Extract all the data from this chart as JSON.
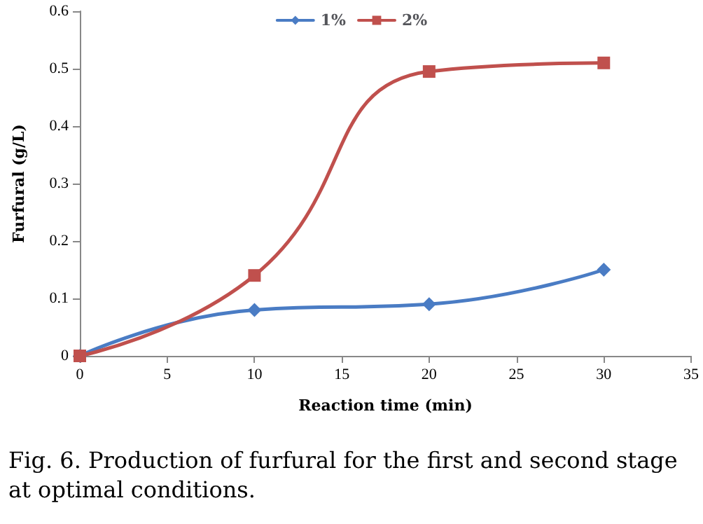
{
  "chart_data": {
    "type": "line",
    "xlabel": "Reaction time (min)",
    "ylabel": "Furfural (g/L)",
    "x": [
      0,
      10,
      20,
      30
    ],
    "series": [
      {
        "name": "1%",
        "color": "#4a7cc4",
        "marker": "diamond",
        "values": [
          0,
          0.08,
          0.09,
          0.15
        ]
      },
      {
        "name": "2%",
        "color": "#c0504d",
        "marker": "square",
        "values": [
          0,
          0.14,
          0.495,
          0.51
        ]
      }
    ],
    "xlim": [
      0,
      35
    ],
    "xticks": [
      0,
      5,
      10,
      15,
      20,
      25,
      30,
      35
    ],
    "ylim": [
      0,
      0.6
    ],
    "yticks": [
      0,
      0.1,
      0.2,
      0.3,
      0.4,
      0.5,
      0.6
    ],
    "grid": false,
    "legend": "top",
    "line_style": "solid",
    "annotations": [
      "Fig.  6.  Production of furfural for the first and second stage at optimal conditions."
    ]
  }
}
